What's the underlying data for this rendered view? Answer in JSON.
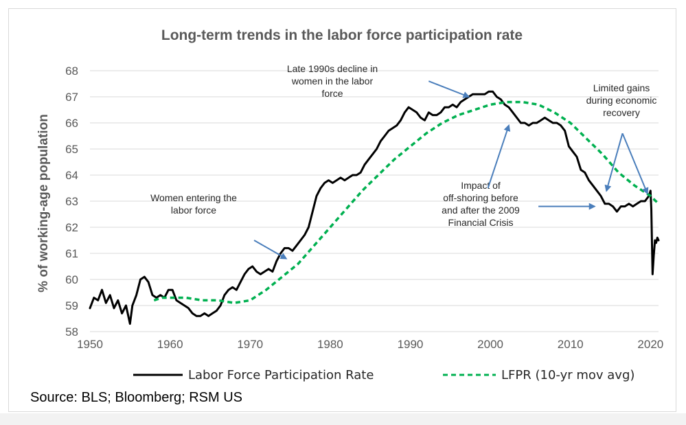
{
  "chart_data": {
    "type": "line",
    "title": "Long-term trends in the labor force participation rate",
    "ylabel": "% of working-age population",
    "xlabel": "",
    "xlim": [
      1950,
      2021
    ],
    "ylim": [
      58,
      68
    ],
    "x_ticks": [
      "1950",
      "1960",
      "1970",
      "1980",
      "1990",
      "2000",
      "2010",
      "2020"
    ],
    "y_ticks": [
      "58",
      "59",
      "60",
      "61",
      "62",
      "63",
      "64",
      "65",
      "66",
      "67",
      "68"
    ],
    "grid": "horizontal",
    "legend_position": "bottom",
    "series": [
      {
        "name": "Labor Force Participation Rate",
        "color": "#000000",
        "style": "solid",
        "points": [
          [
            1950.0,
            58.9
          ],
          [
            1950.5,
            59.3
          ],
          [
            1951.0,
            59.2
          ],
          [
            1951.5,
            59.6
          ],
          [
            1952.0,
            59.1
          ],
          [
            1952.5,
            59.4
          ],
          [
            1953.0,
            58.9
          ],
          [
            1953.5,
            59.2
          ],
          [
            1954.0,
            58.7
          ],
          [
            1954.5,
            59.0
          ],
          [
            1955.0,
            58.3
          ],
          [
            1955.3,
            59.0
          ],
          [
            1955.8,
            59.4
          ],
          [
            1956.3,
            60.0
          ],
          [
            1956.8,
            60.1
          ],
          [
            1957.3,
            59.9
          ],
          [
            1957.8,
            59.4
          ],
          [
            1958.3,
            59.3
          ],
          [
            1958.8,
            59.4
          ],
          [
            1959.3,
            59.3
          ],
          [
            1959.8,
            59.6
          ],
          [
            1960.3,
            59.6
          ],
          [
            1960.8,
            59.2
          ],
          [
            1961.3,
            59.1
          ],
          [
            1961.8,
            59.0
          ],
          [
            1962.3,
            58.9
          ],
          [
            1962.8,
            58.7
          ],
          [
            1963.3,
            58.6
          ],
          [
            1963.8,
            58.6
          ],
          [
            1964.3,
            58.7
          ],
          [
            1964.8,
            58.6
          ],
          [
            1965.3,
            58.7
          ],
          [
            1965.8,
            58.8
          ],
          [
            1966.3,
            59.0
          ],
          [
            1966.8,
            59.4
          ],
          [
            1967.3,
            59.6
          ],
          [
            1967.8,
            59.7
          ],
          [
            1968.3,
            59.6
          ],
          [
            1968.8,
            59.9
          ],
          [
            1969.3,
            60.2
          ],
          [
            1969.8,
            60.4
          ],
          [
            1970.3,
            60.5
          ],
          [
            1970.8,
            60.3
          ],
          [
            1971.3,
            60.2
          ],
          [
            1971.8,
            60.3
          ],
          [
            1972.3,
            60.4
          ],
          [
            1972.8,
            60.3
          ],
          [
            1973.3,
            60.7
          ],
          [
            1973.8,
            61.0
          ],
          [
            1974.3,
            61.2
          ],
          [
            1974.8,
            61.2
          ],
          [
            1975.3,
            61.1
          ],
          [
            1975.8,
            61.3
          ],
          [
            1976.3,
            61.5
          ],
          [
            1976.8,
            61.7
          ],
          [
            1977.3,
            62.0
          ],
          [
            1977.8,
            62.6
          ],
          [
            1978.3,
            63.2
          ],
          [
            1978.8,
            63.5
          ],
          [
            1979.3,
            63.7
          ],
          [
            1979.8,
            63.8
          ],
          [
            1980.3,
            63.7
          ],
          [
            1980.8,
            63.8
          ],
          [
            1981.3,
            63.9
          ],
          [
            1981.8,
            63.8
          ],
          [
            1982.3,
            63.9
          ],
          [
            1982.8,
            64.0
          ],
          [
            1983.3,
            64.0
          ],
          [
            1983.8,
            64.1
          ],
          [
            1984.3,
            64.4
          ],
          [
            1984.8,
            64.6
          ],
          [
            1985.3,
            64.8
          ],
          [
            1985.8,
            65.0
          ],
          [
            1986.3,
            65.3
          ],
          [
            1986.8,
            65.5
          ],
          [
            1987.3,
            65.7
          ],
          [
            1987.8,
            65.8
          ],
          [
            1988.3,
            65.9
          ],
          [
            1988.8,
            66.1
          ],
          [
            1989.3,
            66.4
          ],
          [
            1989.8,
            66.6
          ],
          [
            1990.3,
            66.5
          ],
          [
            1990.8,
            66.4
          ],
          [
            1991.3,
            66.2
          ],
          [
            1991.8,
            66.1
          ],
          [
            1992.3,
            66.4
          ],
          [
            1992.8,
            66.3
          ],
          [
            1993.3,
            66.3
          ],
          [
            1993.8,
            66.4
          ],
          [
            1994.3,
            66.6
          ],
          [
            1994.8,
            66.6
          ],
          [
            1995.3,
            66.7
          ],
          [
            1995.8,
            66.6
          ],
          [
            1996.3,
            66.8
          ],
          [
            1996.8,
            66.9
          ],
          [
            1997.3,
            67.0
          ],
          [
            1997.8,
            67.1
          ],
          [
            1998.3,
            67.1
          ],
          [
            1998.8,
            67.1
          ],
          [
            1999.3,
            67.1
          ],
          [
            1999.8,
            67.2
          ],
          [
            2000.3,
            67.2
          ],
          [
            2000.8,
            67.0
          ],
          [
            2001.3,
            66.9
          ],
          [
            2001.8,
            66.7
          ],
          [
            2002.3,
            66.6
          ],
          [
            2002.8,
            66.4
          ],
          [
            2003.3,
            66.2
          ],
          [
            2003.8,
            66.0
          ],
          [
            2004.3,
            66.0
          ],
          [
            2004.8,
            65.9
          ],
          [
            2005.3,
            66.0
          ],
          [
            2005.8,
            66.0
          ],
          [
            2006.3,
            66.1
          ],
          [
            2006.8,
            66.2
          ],
          [
            2007.3,
            66.1
          ],
          [
            2007.8,
            66.0
          ],
          [
            2008.3,
            66.0
          ],
          [
            2008.8,
            65.9
          ],
          [
            2009.3,
            65.7
          ],
          [
            2009.8,
            65.1
          ],
          [
            2010.3,
            64.9
          ],
          [
            2010.8,
            64.7
          ],
          [
            2011.3,
            64.2
          ],
          [
            2011.8,
            64.1
          ],
          [
            2012.3,
            63.8
          ],
          [
            2012.8,
            63.6
          ],
          [
            2013.3,
            63.4
          ],
          [
            2013.8,
            63.2
          ],
          [
            2014.3,
            62.9
          ],
          [
            2014.8,
            62.9
          ],
          [
            2015.3,
            62.8
          ],
          [
            2015.8,
            62.6
          ],
          [
            2016.3,
            62.8
          ],
          [
            2016.8,
            62.8
          ],
          [
            2017.3,
            62.9
          ],
          [
            2017.8,
            62.8
          ],
          [
            2018.3,
            62.9
          ],
          [
            2018.8,
            63.0
          ],
          [
            2019.3,
            63.0
          ],
          [
            2019.8,
            63.2
          ],
          [
            2020.0,
            63.4
          ],
          [
            2020.1,
            62.7
          ],
          [
            2020.25,
            60.2
          ],
          [
            2020.4,
            60.9
          ],
          [
            2020.55,
            61.5
          ],
          [
            2020.7,
            61.4
          ],
          [
            2020.85,
            61.6
          ],
          [
            2021.0,
            61.5
          ]
        ]
      },
      {
        "name": "LFPR (10-yr mov avg)",
        "color": "#00b050",
        "style": "dashed",
        "points": [
          [
            1958.0,
            59.2
          ],
          [
            1959.0,
            59.3
          ],
          [
            1960.0,
            59.3
          ],
          [
            1962.0,
            59.3
          ],
          [
            1964.0,
            59.2
          ],
          [
            1966.0,
            59.2
          ],
          [
            1968.0,
            59.1
          ],
          [
            1970.0,
            59.2
          ],
          [
            1972.0,
            59.6
          ],
          [
            1974.0,
            60.1
          ],
          [
            1976.0,
            60.6
          ],
          [
            1978.0,
            61.3
          ],
          [
            1980.0,
            62.0
          ],
          [
            1982.0,
            62.7
          ],
          [
            1984.0,
            63.4
          ],
          [
            1986.0,
            64.0
          ],
          [
            1988.0,
            64.6
          ],
          [
            1990.0,
            65.1
          ],
          [
            1992.0,
            65.6
          ],
          [
            1994.0,
            66.0
          ],
          [
            1996.0,
            66.3
          ],
          [
            1998.0,
            66.5
          ],
          [
            2000.0,
            66.7
          ],
          [
            2002.0,
            66.8
          ],
          [
            2004.0,
            66.8
          ],
          [
            2006.0,
            66.7
          ],
          [
            2008.0,
            66.4
          ],
          [
            2010.0,
            66.0
          ],
          [
            2012.0,
            65.4
          ],
          [
            2014.0,
            64.8
          ],
          [
            2016.0,
            64.1
          ],
          [
            2018.0,
            63.6
          ],
          [
            2020.0,
            63.2
          ],
          [
            2021.0,
            62.9
          ]
        ]
      }
    ],
    "annotations": [
      {
        "lines": [
          "Women entering the",
          "labor force"
        ],
        "arrows": [
          {
            "from": [
              1970.5,
              61.5
            ],
            "to": [
              1974.5,
              60.8
            ]
          }
        ]
      },
      {
        "lines": [
          "Late 1990s decline in",
          "women in the labor",
          "force"
        ],
        "arrows": [
          {
            "from": [
              1992.3,
              67.6
            ],
            "to": [
              1997.3,
              67.0
            ]
          }
        ]
      },
      {
        "lines": [
          "Limited gains",
          "during economic",
          "recovery"
        ],
        "arrows": [
          {
            "from": [
              2016.5,
              65.6
            ],
            "to": [
              2014.5,
              63.4
            ]
          },
          {
            "from": [
              2016.5,
              65.6
            ],
            "to": [
              2019.6,
              63.3
            ]
          }
        ]
      },
      {
        "lines": [
          "Impact of",
          "off-shoring before",
          "and after the 2009",
          "Financial Crisis"
        ],
        "arrows": [
          {
            "from": [
              1999.7,
              63.5
            ],
            "to": [
              2002.3,
              65.9
            ]
          },
          {
            "from": [
              2006.0,
              62.8
            ],
            "to": [
              2013.0,
              62.8
            ]
          }
        ]
      }
    ]
  },
  "source": "Source: BLS; Bloomberg; RSM US",
  "colors": {
    "lfpr": "#000000",
    "moving_average": "#00b050",
    "arrow": "#4a7ebb",
    "grid": "#d9d9d9",
    "text": "#595959"
  }
}
